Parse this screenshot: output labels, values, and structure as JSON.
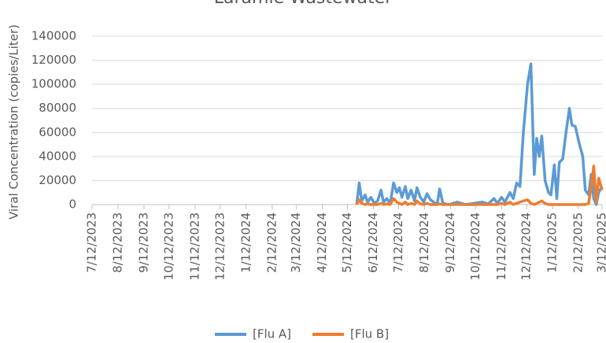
{
  "chart_data": {
    "type": "line",
    "title": "Laramie Wastewater",
    "ylabel": "Viral Concentration (copies/Liter)",
    "x": [
      "2024-05-23",
      "2024-05-26",
      "2024-05-29",
      "2024-06-02",
      "2024-06-05",
      "2024-06-09",
      "2024-06-13",
      "2024-06-17",
      "2024-06-21",
      "2024-06-24",
      "2024-06-28",
      "2024-07-02",
      "2024-07-06",
      "2024-07-10",
      "2024-07-13",
      "2024-07-16",
      "2024-07-20",
      "2024-07-23",
      "2024-07-27",
      "2024-07-31",
      "2024-08-03",
      "2024-08-07",
      "2024-08-11",
      "2024-08-15",
      "2024-08-19",
      "2024-08-23",
      "2024-08-27",
      "2024-08-30",
      "2024-09-03",
      "2024-09-10",
      "2024-09-20",
      "2024-09-30",
      "2024-10-10",
      "2024-10-20",
      "2024-10-27",
      "2024-11-03",
      "2024-11-07",
      "2024-11-12",
      "2024-11-16",
      "2024-11-22",
      "2024-11-26",
      "2024-11-30",
      "2024-12-04",
      "2024-12-08",
      "2024-12-13",
      "2024-12-17",
      "2024-12-21",
      "2024-12-24",
      "2024-12-27",
      "2024-12-30",
      "2025-01-03",
      "2025-01-07",
      "2025-01-10",
      "2025-01-14",
      "2025-01-17",
      "2025-01-20",
      "2025-01-24",
      "2025-01-28",
      "2025-02-01",
      "2025-02-04",
      "2025-02-08",
      "2025-02-13",
      "2025-02-17",
      "2025-02-20",
      "2025-02-24",
      "2025-02-27",
      "2025-03-02",
      "2025-03-05",
      "2025-03-08",
      "2025-03-12"
    ],
    "series": [
      {
        "name": "[Flu A]",
        "color": "#5b9bd5",
        "values": [
          0,
          18000,
          3000,
          8000,
          2000,
          6000,
          1000,
          3000,
          12000,
          2000,
          5000,
          1000,
          18000,
          10000,
          14000,
          6000,
          15000,
          5000,
          12000,
          3000,
          14000,
          6000,
          2000,
          9000,
          4000,
          2000,
          0,
          13000,
          1000,
          0,
          2000,
          0,
          1000,
          2000,
          500,
          5000,
          1000,
          6000,
          2000,
          10000,
          5000,
          18000,
          15000,
          60000,
          100000,
          117000,
          25000,
          55000,
          40000,
          57000,
          20000,
          10000,
          8000,
          33000,
          5000,
          35000,
          38000,
          60000,
          80000,
          66000,
          65000,
          50000,
          40000,
          12000,
          8000,
          25000,
          5000,
          0,
          10000,
          15000
        ]
      },
      {
        "name": "[Flu B]",
        "color": "#ed7d31",
        "values": [
          0,
          4000,
          1000,
          0,
          500,
          0,
          0,
          0,
          1000,
          0,
          500,
          0,
          5000,
          2000,
          1000,
          0,
          2000,
          0,
          1000,
          0,
          3000,
          500,
          0,
          1000,
          0,
          0,
          0,
          500,
          0,
          0,
          0,
          0,
          0,
          0,
          0,
          0,
          0,
          1000,
          0,
          2000,
          0,
          1000,
          2000,
          3000,
          4000,
          1000,
          0,
          1000,
          2000,
          3000,
          1000,
          0,
          0,
          0,
          0,
          0,
          0,
          0,
          0,
          0,
          0,
          0,
          0,
          0,
          1000,
          15000,
          32000,
          2000,
          22000,
          12000
        ]
      }
    ],
    "xlim": [
      "2023-07-12",
      "2025-03-12"
    ],
    "xticks": [
      {
        "value": "2023-07-12",
        "label": "7/12/2023"
      },
      {
        "value": "2023-08-12",
        "label": "8/12/2023"
      },
      {
        "value": "2023-09-12",
        "label": "9/12/2023"
      },
      {
        "value": "2023-10-12",
        "label": "10/12/2023"
      },
      {
        "value": "2023-11-12",
        "label": "11/12/2023"
      },
      {
        "value": "2023-12-12",
        "label": "12/12/2023"
      },
      {
        "value": "2024-01-12",
        "label": "1/12/2024"
      },
      {
        "value": "2024-02-12",
        "label": "2/12/2024"
      },
      {
        "value": "2024-03-12",
        "label": "3/12/2024"
      },
      {
        "value": "2024-04-12",
        "label": "4/12/2024"
      },
      {
        "value": "2024-05-12",
        "label": "5/12/2024"
      },
      {
        "value": "2024-06-12",
        "label": "6/12/2024"
      },
      {
        "value": "2024-07-12",
        "label": "7/12/2024"
      },
      {
        "value": "2024-08-12",
        "label": "8/12/2024"
      },
      {
        "value": "2024-09-12",
        "label": "9/12/2024"
      },
      {
        "value": "2024-10-12",
        "label": "10/12/2024"
      },
      {
        "value": "2024-11-12",
        "label": "11/12/2024"
      },
      {
        "value": "2024-12-12",
        "label": "12/12/2024"
      },
      {
        "value": "2025-01-12",
        "label": "1/12/2025"
      },
      {
        "value": "2025-02-12",
        "label": "2/12/2025"
      },
      {
        "value": "2025-03-12",
        "label": "3/12/2025"
      }
    ],
    "ylim": [
      0,
      140000
    ],
    "yticks": [
      0,
      20000,
      40000,
      60000,
      80000,
      100000,
      120000,
      140000
    ],
    "grid": true,
    "legend": "bottom"
  }
}
